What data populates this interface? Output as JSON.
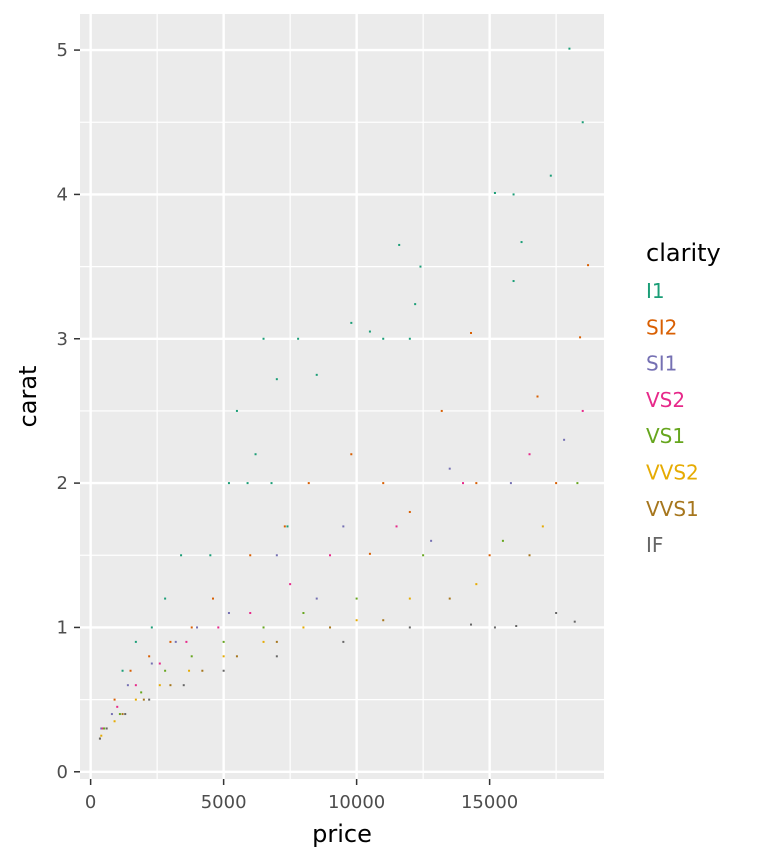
{
  "chart_data": {
    "type": "scatter",
    "xlabel": "price",
    "ylabel": "carat",
    "xlim": [
      -400,
      19300
    ],
    "ylim": [
      -0.05,
      5.25
    ],
    "xticks": [
      0,
      5000,
      10000,
      15000
    ],
    "xtick_labels": [
      "0",
      "5000",
      "10000",
      "15000"
    ],
    "yticks": [
      0,
      1,
      2,
      3,
      4,
      5
    ],
    "ytick_labels": [
      "0",
      "1",
      "2",
      "3",
      "4",
      "5"
    ],
    "grid": true,
    "panel_background": "#ebebeb",
    "legend": {
      "title": "clarity",
      "placement": "right",
      "entries": [
        {
          "label": "I1",
          "color": "#1b9e77"
        },
        {
          "label": "SI2",
          "color": "#d95f02"
        },
        {
          "label": "SI1",
          "color": "#7570b3"
        },
        {
          "label": "VS2",
          "color": "#e7298a"
        },
        {
          "label": "VS1",
          "color": "#66a61e"
        },
        {
          "label": "VVS2",
          "color": "#e6ab02"
        },
        {
          "label": "VVS1",
          "color": "#a6761d"
        },
        {
          "label": "IF",
          "color": "#666666"
        }
      ]
    },
    "series": [
      {
        "name": "I1",
        "points": [
          [
            18000,
            5.01
          ],
          [
            18500,
            4.5
          ],
          [
            17300,
            4.13
          ],
          [
            15200,
            4.01
          ],
          [
            15900,
            4.0
          ],
          [
            16200,
            3.67
          ],
          [
            11600,
            3.65
          ],
          [
            12400,
            3.5
          ],
          [
            15900,
            3.4
          ],
          [
            12200,
            3.24
          ],
          [
            9800,
            3.11
          ],
          [
            10500,
            3.05
          ],
          [
            7800,
            3.0
          ],
          [
            6500,
            3.0
          ],
          [
            11000,
            3.0
          ],
          [
            12000,
            3.0
          ],
          [
            7000,
            2.72
          ],
          [
            8500,
            2.75
          ],
          [
            5500,
            2.5
          ],
          [
            6200,
            2.2
          ],
          [
            5200,
            2.0
          ],
          [
            5900,
            2.0
          ],
          [
            6800,
            2.0
          ],
          [
            7400,
            1.7
          ],
          [
            4500,
            1.5
          ],
          [
            3400,
            1.5
          ],
          [
            2800,
            1.2
          ],
          [
            2300,
            1.0
          ],
          [
            1700,
            0.9
          ],
          [
            1200,
            0.7
          ]
        ]
      },
      {
        "name": "SI2",
        "points": [
          [
            18700,
            3.51
          ],
          [
            14300,
            3.04
          ],
          [
            18400,
            3.01
          ],
          [
            16800,
            2.6
          ],
          [
            13200,
            2.5
          ],
          [
            9800,
            2.2
          ],
          [
            11000,
            2.0
          ],
          [
            14500,
            2.0
          ],
          [
            17500,
            2.0
          ],
          [
            8200,
            2.0
          ],
          [
            12000,
            1.8
          ],
          [
            7300,
            1.7
          ],
          [
            10500,
            1.51
          ],
          [
            6000,
            1.5
          ],
          [
            15000,
            1.5
          ],
          [
            4600,
            1.2
          ],
          [
            3800,
            1.0
          ],
          [
            3000,
            0.9
          ],
          [
            2200,
            0.8
          ],
          [
            1500,
            0.7
          ],
          [
            900,
            0.5
          ],
          [
            500,
            0.3
          ]
        ]
      },
      {
        "name": "SI1",
        "points": [
          [
            17800,
            2.3
          ],
          [
            13500,
            2.1
          ],
          [
            15800,
            2.0
          ],
          [
            9500,
            1.7
          ],
          [
            12800,
            1.6
          ],
          [
            7000,
            1.5
          ],
          [
            8500,
            1.2
          ],
          [
            5200,
            1.1
          ],
          [
            4000,
            1.0
          ],
          [
            3200,
            0.9
          ],
          [
            2300,
            0.75
          ],
          [
            1400,
            0.6
          ],
          [
            800,
            0.4
          ],
          [
            400,
            0.3
          ]
        ]
      },
      {
        "name": "VS2",
        "points": [
          [
            18500,
            2.5
          ],
          [
            16500,
            2.2
          ],
          [
            14000,
            2.0
          ],
          [
            11500,
            1.7
          ],
          [
            9000,
            1.5
          ],
          [
            7500,
            1.3
          ],
          [
            6000,
            1.1
          ],
          [
            4800,
            1.0
          ],
          [
            3600,
            0.9
          ],
          [
            2600,
            0.75
          ],
          [
            1700,
            0.6
          ],
          [
            1000,
            0.45
          ],
          [
            450,
            0.3
          ]
        ]
      },
      {
        "name": "VS1",
        "points": [
          [
            18300,
            2.0
          ],
          [
            15500,
            1.6
          ],
          [
            12500,
            1.5
          ],
          [
            10000,
            1.2
          ],
          [
            8000,
            1.1
          ],
          [
            6500,
            1.0
          ],
          [
            5000,
            0.9
          ],
          [
            3800,
            0.8
          ],
          [
            2800,
            0.7
          ],
          [
            1900,
            0.55
          ],
          [
            1100,
            0.4
          ],
          [
            500,
            0.3
          ]
        ]
      },
      {
        "name": "VVS2",
        "points": [
          [
            17000,
            1.7
          ],
          [
            14500,
            1.3
          ],
          [
            12000,
            1.2
          ],
          [
            10000,
            1.05
          ],
          [
            8000,
            1.0
          ],
          [
            6500,
            0.9
          ],
          [
            5000,
            0.8
          ],
          [
            3700,
            0.7
          ],
          [
            2600,
            0.6
          ],
          [
            1700,
            0.5
          ],
          [
            900,
            0.35
          ],
          [
            400,
            0.25
          ]
        ]
      },
      {
        "name": "VVS1",
        "points": [
          [
            16500,
            1.5
          ],
          [
            13500,
            1.2
          ],
          [
            11000,
            1.05
          ],
          [
            9000,
            1.0
          ],
          [
            7000,
            0.9
          ],
          [
            5500,
            0.8
          ],
          [
            4200,
            0.7
          ],
          [
            3000,
            0.6
          ],
          [
            2000,
            0.5
          ],
          [
            1200,
            0.4
          ],
          [
            600,
            0.3
          ],
          [
            350,
            0.23
          ]
        ]
      },
      {
        "name": "IF",
        "points": [
          [
            18200,
            1.04
          ],
          [
            17500,
            1.1
          ],
          [
            16000,
            1.01
          ],
          [
            15200,
            1.0
          ],
          [
            14300,
            1.02
          ],
          [
            12000,
            1.0
          ],
          [
            9500,
            0.9
          ],
          [
            7000,
            0.8
          ],
          [
            5000,
            0.7
          ],
          [
            3500,
            0.6
          ],
          [
            2200,
            0.5
          ],
          [
            1300,
            0.4
          ],
          [
            600,
            0.3
          ],
          [
            350,
            0.23
          ]
        ]
      }
    ]
  }
}
